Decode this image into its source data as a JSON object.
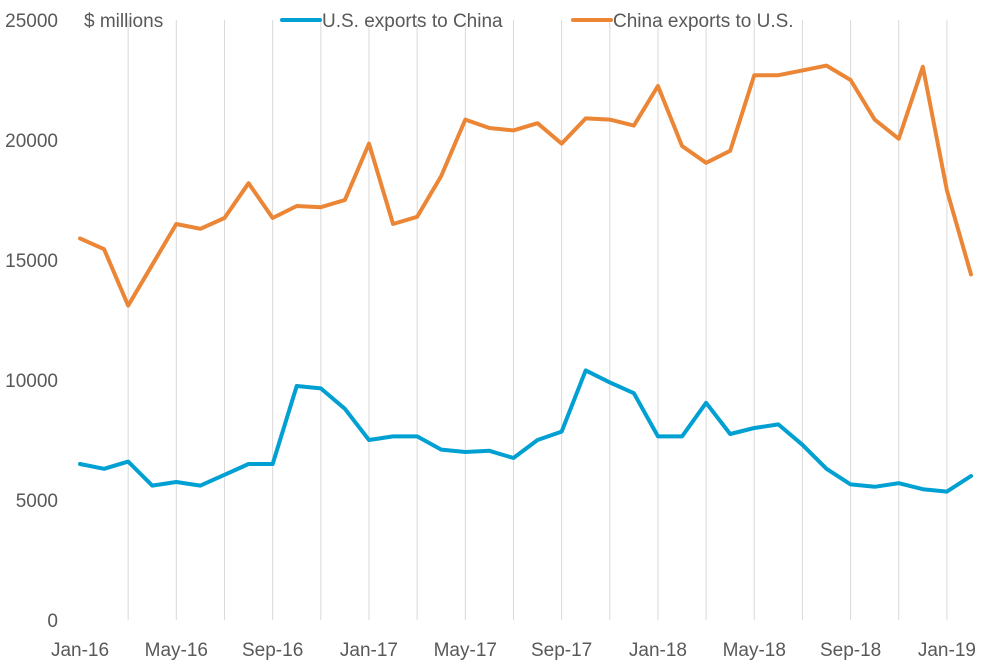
{
  "chart_data": {
    "type": "line",
    "ylabel": "$ millions",
    "ylim": [
      0,
      25000
    ],
    "yticks": [
      0,
      5000,
      10000,
      15000,
      20000,
      25000
    ],
    "grid": "vertical-only",
    "legend_position": "top",
    "categories": [
      "Jan-16",
      "Feb-16",
      "Mar-16",
      "Apr-16",
      "May-16",
      "Jun-16",
      "Jul-16",
      "Aug-16",
      "Sep-16",
      "Oct-16",
      "Nov-16",
      "Dec-16",
      "Jan-17",
      "Feb-17",
      "Mar-17",
      "Apr-17",
      "May-17",
      "Jun-17",
      "Jul-17",
      "Aug-17",
      "Sep-17",
      "Oct-17",
      "Nov-17",
      "Dec-17",
      "Jan-18",
      "Feb-18",
      "Mar-18",
      "Apr-18",
      "May-18",
      "Jun-18",
      "Jul-18",
      "Aug-18",
      "Sep-18",
      "Oct-18",
      "Nov-18",
      "Dec-18",
      "Jan-19",
      "Feb-19"
    ],
    "xtick_labels": [
      "Jan-16",
      "May-16",
      "Sep-16",
      "Jan-17",
      "May-17",
      "Sep-17",
      "Jan-18",
      "May-18",
      "Sep-18",
      "Jan-19"
    ],
    "series": [
      {
        "name": "U.S. exports to China",
        "color": "#00a0d2",
        "values": [
          6500,
          6300,
          6600,
          5600,
          5750,
          5600,
          6050,
          6500,
          6500,
          9750,
          9650,
          8800,
          7500,
          7650,
          7650,
          7100,
          7000,
          7050,
          6750,
          7500,
          7850,
          10400,
          9900,
          9450,
          7650,
          7650,
          9050,
          7750,
          8000,
          8150,
          7300,
          6300,
          5650,
          5550,
          5700,
          5450,
          5350,
          6000
        ]
      },
      {
        "name": "China exports to U.S.",
        "color": "#ec8637",
        "values": [
          15900,
          15450,
          13100,
          14800,
          16500,
          16300,
          16750,
          18200,
          16750,
          17250,
          17200,
          17500,
          19850,
          16500,
          16800,
          18500,
          20850,
          20500,
          20400,
          20700,
          19850,
          20900,
          20850,
          20600,
          22250,
          19750,
          19050,
          19550,
          22700,
          22700,
          22900,
          23100,
          22500,
          20850,
          20050,
          23050,
          17900,
          14400
        ]
      }
    ]
  }
}
